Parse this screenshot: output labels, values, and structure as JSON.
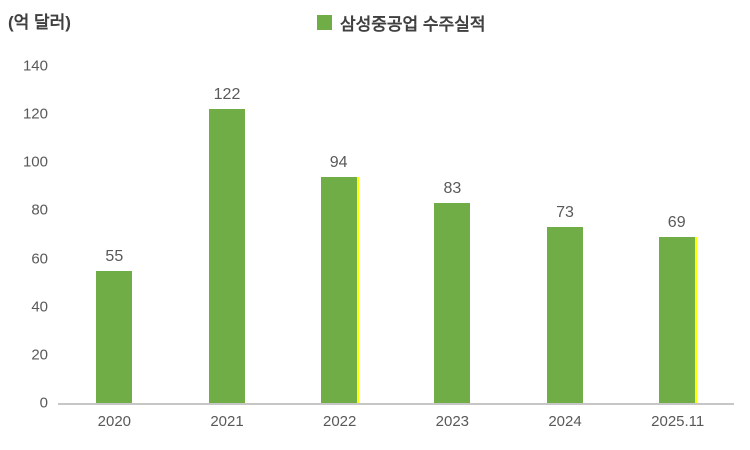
{
  "chart_data": {
    "type": "bar",
    "legend": "삼성중공업 수주실적",
    "unit_label": "(억 달러)",
    "categories": [
      "2020",
      "2021",
      "2022",
      "2023",
      "2024",
      "2025.11"
    ],
    "values": [
      55,
      122,
      94,
      83,
      73,
      69
    ],
    "ylim": [
      0,
      140
    ],
    "ytick_step": 20,
    "yticks": [
      0,
      20,
      40,
      60,
      80,
      100,
      120,
      140
    ],
    "grid": false,
    "legend_position": "top-center",
    "bar_color": "#70AD47",
    "edge_color": "#FFFF00",
    "yellow_edge_indices": [
      2,
      5
    ],
    "colors": {
      "bar_green": "#70AD47",
      "axis_line": "#C6C6C6",
      "tick_text": "#595959",
      "title_text": "#404040",
      "background": "#FFFFFF"
    }
  }
}
